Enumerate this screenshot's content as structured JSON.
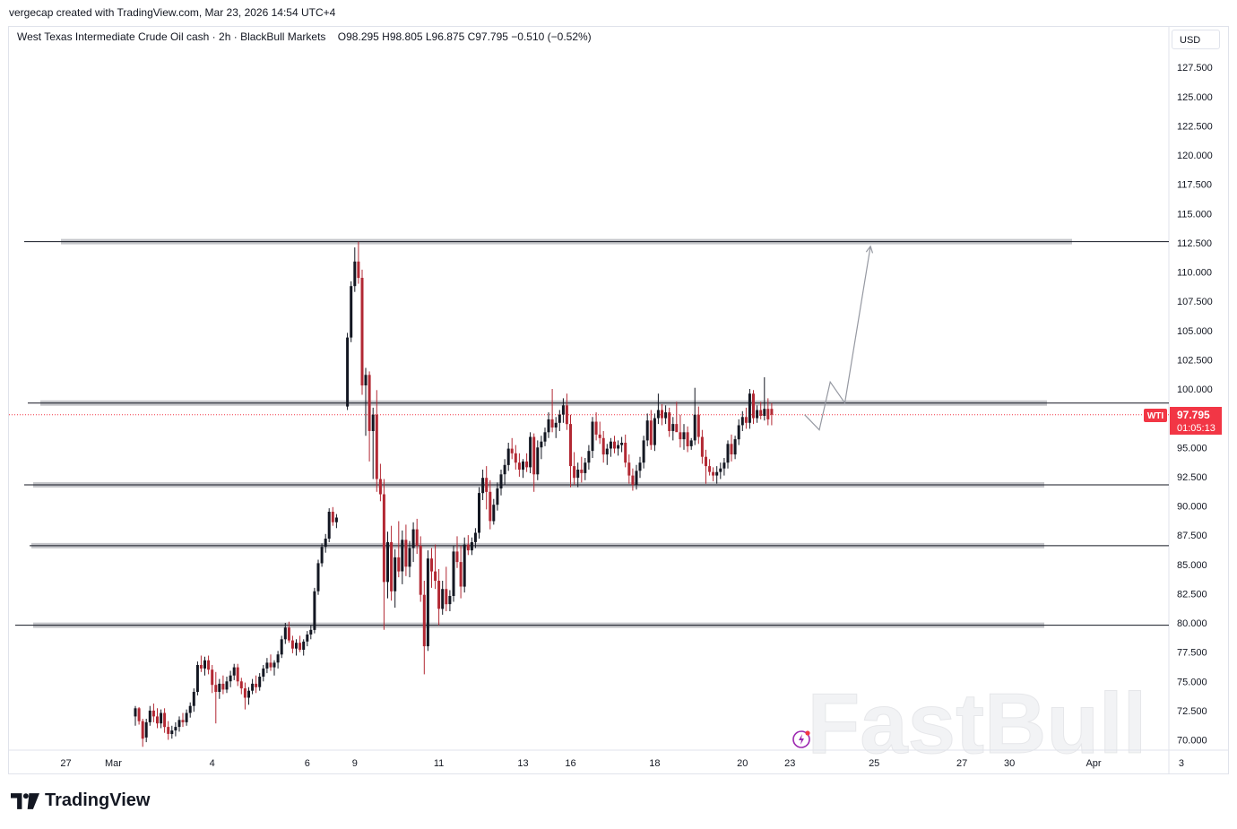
{
  "header": {
    "created_by": "vergecap created with TradingView.com, Mar 23, 2026 14:54 UTC+4"
  },
  "legend": {
    "symbol": "West Texas Intermediate Crude Oil cash",
    "interval": "2h",
    "broker": "BlackBull Markets",
    "ohlc": "O98.295  H98.805  L96.875  C97.795  −0.510 (−0.52%)"
  },
  "price_scale": {
    "currency": "USD"
  },
  "price_label": {
    "ticker": "WTI",
    "price": "97.795",
    "countdown": "01:05:13"
  },
  "watermark": "FastBull",
  "footer": {
    "brand": "TradingView"
  },
  "colors": {
    "up": "#131722",
    "down": "#b22833",
    "level_band": "#c5c6ca",
    "price_tag": "#f23645",
    "projection": "#9598a1"
  },
  "chart_data": {
    "type": "candlestick",
    "ylim": [
      69.0,
      131.0
    ],
    "y_ticks": [
      "127.500",
      "125.000",
      "122.500",
      "120.000",
      "117.500",
      "115.000",
      "112.500",
      "110.000",
      "107.500",
      "105.000",
      "102.500",
      "100.000",
      "97.500",
      "95.000",
      "92.500",
      "90.000",
      "87.500",
      "85.000",
      "82.500",
      "80.000",
      "77.500",
      "75.000",
      "72.500",
      "70.000"
    ],
    "x_ticks": [
      {
        "label": "27",
        "slot": -19
      },
      {
        "label": "Mar",
        "slot": -6
      },
      {
        "label": "4",
        "slot": 21
      },
      {
        "label": "6",
        "slot": 47
      },
      {
        "label": "9",
        "slot": 60
      },
      {
        "label": "11",
        "slot": 83
      },
      {
        "label": "13",
        "slot": 106
      },
      {
        "label": "16",
        "slot": 119
      },
      {
        "label": "18",
        "slot": 142
      },
      {
        "label": "20",
        "slot": 166
      },
      {
        "label": "23",
        "slot": 179
      },
      {
        "label": "25",
        "slot": 202
      },
      {
        "label": "27",
        "slot": 226
      },
      {
        "label": "30",
        "slot": 239
      },
      {
        "label": "Apr",
        "slot": 262
      },
      {
        "label": "3",
        "slot": 286
      }
    ],
    "levels": [
      112.6,
      98.8,
      91.8,
      86.6,
      79.8
    ],
    "current_price": 97.795,
    "projection_path": [
      {
        "slot": 183,
        "price": 97.8
      },
      {
        "slot": 187,
        "price": 96.5
      },
      {
        "slot": 190,
        "price": 100.6
      },
      {
        "slot": 194,
        "price": 98.8
      },
      {
        "slot": 201,
        "price": 112.2
      }
    ],
    "candles": [
      [
        72.0,
        72.9,
        71.2,
        72.7
      ],
      [
        72.7,
        72.8,
        71.3,
        71.6
      ],
      [
        71.6,
        71.8,
        69.4,
        70.1
      ],
      [
        70.2,
        71.8,
        69.8,
        71.5
      ],
      [
        71.5,
        72.9,
        71.2,
        72.5
      ],
      [
        72.5,
        73.1,
        71.5,
        72.0
      ],
      [
        72.0,
        72.7,
        71.0,
        71.4
      ],
      [
        71.4,
        72.6,
        71.0,
        72.3
      ],
      [
        72.3,
        72.7,
        70.6,
        71.1
      ],
      [
        71.1,
        71.6,
        70.0,
        70.5
      ],
      [
        70.5,
        71.2,
        70.1,
        70.8
      ],
      [
        70.8,
        71.5,
        70.3,
        71.1
      ],
      [
        71.1,
        72.0,
        70.7,
        71.7
      ],
      [
        71.7,
        72.3,
        71.1,
        71.5
      ],
      [
        71.5,
        72.6,
        71.2,
        72.3
      ],
      [
        72.3,
        73.2,
        71.9,
        72.9
      ],
      [
        72.9,
        74.4,
        72.4,
        74.1
      ],
      [
        74.1,
        76.7,
        73.8,
        76.4
      ],
      [
        76.4,
        77.2,
        75.8,
        76.1
      ],
      [
        76.1,
        77.1,
        75.5,
        76.8
      ],
      [
        76.8,
        77.2,
        75.6,
        76.0
      ],
      [
        76.0,
        76.4,
        74.0,
        74.7
      ],
      [
        74.7,
        75.8,
        71.4,
        74.1
      ],
      [
        74.1,
        75.2,
        73.5,
        74.8
      ],
      [
        74.8,
        75.5,
        73.9,
        74.3
      ],
      [
        74.3,
        75.4,
        74.0,
        75.0
      ],
      [
        75.0,
        75.9,
        74.5,
        75.5
      ],
      [
        75.5,
        76.5,
        75.1,
        76.2
      ],
      [
        76.2,
        76.5,
        74.6,
        75.0
      ],
      [
        75.0,
        75.3,
        73.9,
        74.4
      ],
      [
        74.4,
        74.9,
        72.6,
        73.6
      ],
      [
        73.6,
        74.5,
        73.0,
        74.2
      ],
      [
        74.2,
        75.2,
        73.9,
        74.8
      ],
      [
        74.8,
        75.5,
        74.0,
        74.5
      ],
      [
        74.5,
        75.7,
        74.2,
        75.4
      ],
      [
        75.4,
        76.4,
        75.0,
        76.1
      ],
      [
        76.1,
        77.0,
        75.7,
        76.6
      ],
      [
        76.6,
        77.3,
        75.9,
        76.2
      ],
      [
        76.2,
        76.8,
        75.5,
        76.6
      ],
      [
        76.6,
        77.6,
        76.1,
        77.3
      ],
      [
        77.3,
        78.9,
        77.0,
        78.6
      ],
      [
        78.6,
        80.0,
        78.2,
        79.6
      ],
      [
        79.6,
        80.1,
        78.3,
        78.5
      ],
      [
        78.5,
        78.9,
        77.4,
        77.8
      ],
      [
        77.8,
        78.6,
        77.2,
        78.3
      ],
      [
        78.3,
        78.9,
        77.5,
        77.7
      ],
      [
        77.7,
        78.6,
        77.2,
        78.4
      ],
      [
        78.4,
        79.3,
        78.0,
        79.0
      ],
      [
        79.0,
        79.8,
        78.6,
        79.4
      ],
      [
        79.4,
        83.0,
        79.1,
        82.7
      ],
      [
        82.7,
        85.4,
        82.4,
        85.1
      ],
      [
        85.1,
        86.8,
        84.8,
        86.5
      ],
      [
        86.5,
        87.6,
        86.0,
        87.2
      ],
      [
        87.2,
        89.8,
        86.9,
        89.5
      ],
      [
        89.5,
        89.9,
        88.3,
        88.6
      ],
      [
        88.6,
        89.3,
        88.1,
        89.0
      ],
      [
        null,
        null,
        null,
        null
      ],
      [
        null,
        null,
        null,
        null
      ],
      [
        98.5,
        104.8,
        98.2,
        104.4
      ],
      [
        104.4,
        109.2,
        104.0,
        108.8
      ],
      [
        108.8,
        112.1,
        108.3,
        110.9
      ],
      [
        110.9,
        112.6,
        109.0,
        109.5
      ],
      [
        109.5,
        110.2,
        99.5,
        100.3
      ],
      [
        100.3,
        101.8,
        96.0,
        101.2
      ],
      [
        101.2,
        101.5,
        93.8,
        96.4
      ],
      [
        96.4,
        98.4,
        92.3,
        97.8
      ],
      [
        97.8,
        99.9,
        91.2,
        92.3
      ],
      [
        92.3,
        93.6,
        90.4,
        91.0
      ],
      [
        91.0,
        92.3,
        79.4,
        83.5
      ],
      [
        83.5,
        87.8,
        82.1,
        86.9
      ],
      [
        86.9,
        88.3,
        81.9,
        82.7
      ],
      [
        82.7,
        86.3,
        81.3,
        85.6
      ],
      [
        85.6,
        88.7,
        83.9,
        84.4
      ],
      [
        84.4,
        87.9,
        83.3,
        87.1
      ],
      [
        87.1,
        88.4,
        84.0,
        84.8
      ],
      [
        84.8,
        87.0,
        83.9,
        86.4
      ],
      [
        86.4,
        88.6,
        85.2,
        88.0
      ],
      [
        88.0,
        88.9,
        85.9,
        86.6
      ],
      [
        86.6,
        87.4,
        81.8,
        82.4
      ],
      [
        82.4,
        83.6,
        75.6,
        78.0
      ],
      [
        78.0,
        86.2,
        77.6,
        85.5
      ],
      [
        85.5,
        86.4,
        83.0,
        84.4
      ],
      [
        84.4,
        86.7,
        82.9,
        83.6
      ],
      [
        83.6,
        84.6,
        79.8,
        81.2
      ],
      [
        81.2,
        83.6,
        80.7,
        82.9
      ],
      [
        82.9,
        84.8,
        81.0,
        81.6
      ],
      [
        81.6,
        82.8,
        81.0,
        82.3
      ],
      [
        82.3,
        86.6,
        81.8,
        86.1
      ],
      [
        86.1,
        87.4,
        84.7,
        85.2
      ],
      [
        85.2,
        86.6,
        82.1,
        83.1
      ],
      [
        83.1,
        87.3,
        82.6,
        86.7
      ],
      [
        86.7,
        87.5,
        85.8,
        86.2
      ],
      [
        86.2,
        87.3,
        85.8,
        86.9
      ],
      [
        86.9,
        88.1,
        86.4,
        87.7
      ],
      [
        87.7,
        91.6,
        87.2,
        91.1
      ],
      [
        91.1,
        93.1,
        90.5,
        92.4
      ],
      [
        92.4,
        93.4,
        89.7,
        91.2
      ],
      [
        91.2,
        92.2,
        88.0,
        88.7
      ],
      [
        88.7,
        90.6,
        88.4,
        90.1
      ],
      [
        90.1,
        92.0,
        89.6,
        91.5
      ],
      [
        91.5,
        93.1,
        90.9,
        92.7
      ],
      [
        92.7,
        94.0,
        91.8,
        93.5
      ],
      [
        93.5,
        95.4,
        93.0,
        94.9
      ],
      [
        94.9,
        95.8,
        94.0,
        94.5
      ],
      [
        94.5,
        95.2,
        93.1,
        93.7
      ],
      [
        93.7,
        94.5,
        92.5,
        93.1
      ],
      [
        93.1,
        94.0,
        92.4,
        93.8
      ],
      [
        93.8,
        94.5,
        92.9,
        93.3
      ],
      [
        93.3,
        96.3,
        92.8,
        95.9
      ],
      [
        95.9,
        96.2,
        91.2,
        92.7
      ],
      [
        92.7,
        95.6,
        92.2,
        95.0
      ],
      [
        95.0,
        96.0,
        94.0,
        95.5
      ],
      [
        95.5,
        96.7,
        95.1,
        96.3
      ],
      [
        96.3,
        98.0,
        95.8,
        97.4
      ],
      [
        97.4,
        100.0,
        96.3,
        96.7
      ],
      [
        96.7,
        97.6,
        95.8,
        97.1
      ],
      [
        97.1,
        98.2,
        96.4,
        97.8
      ],
      [
        97.8,
        99.2,
        97.1,
        98.6
      ],
      [
        98.6,
        99.6,
        96.5,
        97.0
      ],
      [
        97.0,
        97.8,
        91.6,
        93.4
      ],
      [
        93.4,
        94.6,
        91.8,
        92.4
      ],
      [
        92.4,
        93.7,
        91.6,
        93.1
      ],
      [
        93.1,
        94.2,
        92.0,
        92.8
      ],
      [
        92.8,
        94.1,
        92.2,
        93.7
      ],
      [
        93.7,
        95.2,
        93.1,
        94.7
      ],
      [
        94.7,
        97.6,
        94.1,
        97.2
      ],
      [
        97.2,
        98.0,
        95.6,
        96.1
      ],
      [
        96.1,
        97.2,
        95.3,
        95.8
      ],
      [
        95.8,
        96.4,
        93.7,
        94.4
      ],
      [
        94.4,
        95.3,
        93.5,
        94.9
      ],
      [
        94.9,
        95.8,
        94.2,
        95.5
      ],
      [
        95.5,
        96.0,
        94.5,
        94.9
      ],
      [
        94.9,
        95.6,
        94.3,
        95.2
      ],
      [
        95.2,
        95.9,
        94.6,
        95.4
      ],
      [
        95.4,
        96.1,
        93.3,
        93.7
      ],
      [
        93.7,
        94.4,
        91.9,
        92.6
      ],
      [
        92.6,
        93.2,
        91.3,
        91.8
      ],
      [
        91.8,
        93.5,
        91.4,
        93.0
      ],
      [
        93.0,
        94.2,
        92.4,
        93.7
      ],
      [
        93.7,
        96.0,
        93.2,
        95.6
      ],
      [
        95.6,
        97.9,
        95.1,
        97.3
      ],
      [
        97.3,
        98.2,
        94.8,
        95.2
      ],
      [
        95.2,
        97.9,
        94.7,
        97.5
      ],
      [
        97.5,
        99.6,
        97.0,
        98.2
      ],
      [
        98.2,
        98.7,
        96.9,
        97.5
      ],
      [
        97.5,
        98.6,
        97.0,
        98.0
      ],
      [
        98.0,
        98.4,
        95.9,
        96.4
      ],
      [
        96.4,
        97.6,
        95.6,
        97.0
      ],
      [
        97.0,
        98.9,
        96.6,
        96.3
      ],
      [
        96.3,
        97.8,
        95.0,
        95.7
      ],
      [
        95.7,
        97.0,
        94.8,
        96.3
      ],
      [
        96.3,
        96.8,
        94.6,
        95.1
      ],
      [
        95.1,
        95.8,
        94.8,
        95.6
      ],
      [
        95.6,
        100.1,
        95.2,
        97.8
      ],
      [
        97.8,
        98.5,
        95.3,
        95.9
      ],
      [
        95.9,
        96.5,
        93.6,
        94.2
      ],
      [
        94.2,
        94.8,
        91.9,
        93.4
      ],
      [
        93.4,
        94.0,
        92.6,
        92.9
      ],
      [
        92.9,
        93.3,
        92.1,
        92.6
      ],
      [
        92.6,
        93.4,
        91.9,
        92.9
      ],
      [
        92.9,
        93.7,
        92.3,
        93.2
      ],
      [
        93.2,
        94.1,
        92.6,
        93.7
      ],
      [
        93.7,
        95.6,
        93.2,
        95.3
      ],
      [
        95.3,
        96.1,
        93.8,
        94.4
      ],
      [
        94.4,
        96.0,
        94.0,
        95.7
      ],
      [
        95.7,
        97.4,
        95.2,
        96.9
      ],
      [
        96.9,
        98.1,
        96.4,
        97.6
      ],
      [
        97.6,
        98.4,
        96.6,
        97.1
      ],
      [
        97.1,
        100.0,
        96.6,
        99.6
      ],
      [
        99.6,
        99.9,
        97.0,
        97.5
      ],
      [
        97.5,
        98.6,
        97.1,
        98.2
      ],
      [
        98.2,
        98.9,
        97.4,
        97.7
      ],
      [
        97.7,
        101.0,
        97.3,
        98.3
      ],
      [
        98.3,
        99.2,
        96.9,
        97.4
      ],
      [
        98.3,
        98.8,
        96.9,
        97.8
      ]
    ]
  }
}
